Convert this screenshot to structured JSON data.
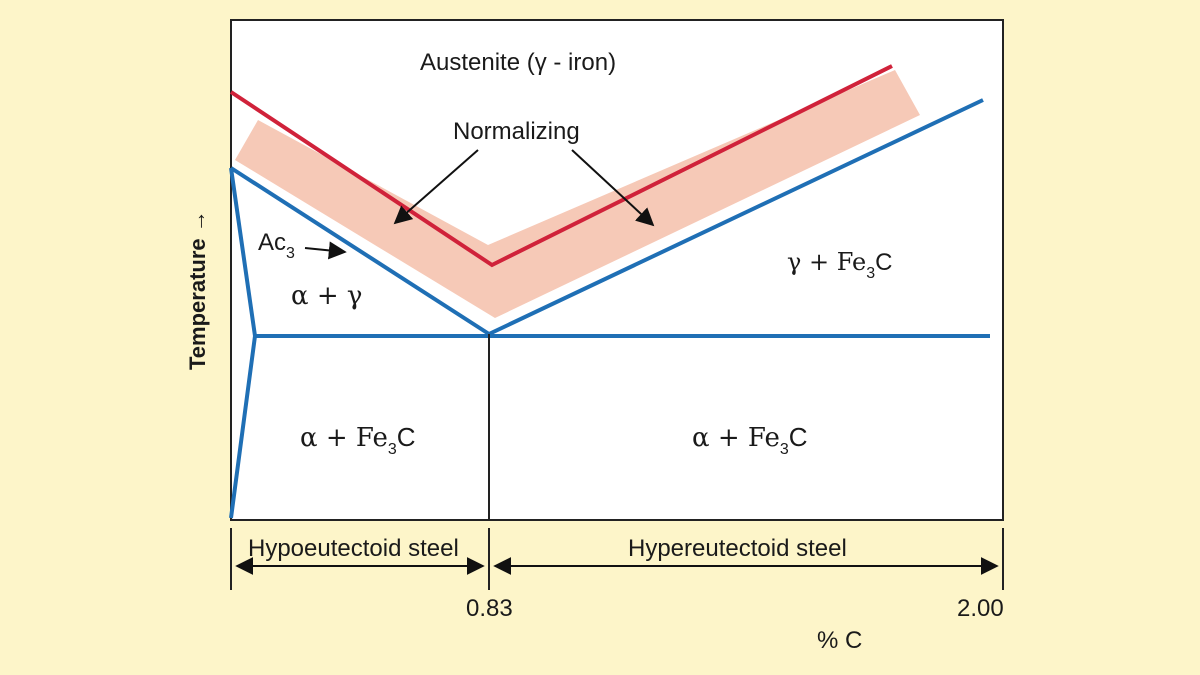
{
  "diagram": {
    "regions": {
      "austenite": "Austenite (γ - iron)",
      "normalizing": "Normalizing",
      "alpha_gamma": "α + γ",
      "gamma_fe3c_main": "γ + Fe",
      "alpha_fe3c_left_main": "α + Fe",
      "alpha_fe3c_right_main": "α + Fe",
      "fe3c_sub": "3",
      "fe3c_tail": "C"
    },
    "ac3": {
      "main": "Ac",
      "sub": "3"
    },
    "axis": {
      "y_label": "Temperature →",
      "x_label": "% C",
      "ticks": [
        "0.83",
        "2.00"
      ]
    },
    "ranges": {
      "hypo": "Hypoeutectoid steel",
      "hyper": "Hypereutectoid steel"
    },
    "colors": {
      "background": "#fdf5c9",
      "plot_bg": "#ffffff",
      "red_line": "#d0223a",
      "blue_line": "#1f6fb5",
      "band": "#f6c9b7"
    }
  }
}
